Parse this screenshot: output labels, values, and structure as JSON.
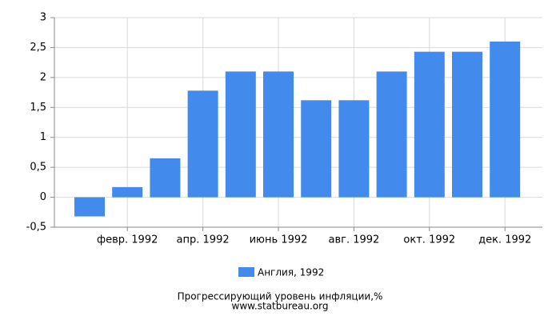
{
  "chart_data": {
    "type": "bar",
    "title": "Прогрессирующий уровень инфляции,%",
    "source": "www.statbureau.org",
    "categories": [
      null,
      "февр. 1992",
      null,
      "апр. 1992",
      null,
      "июнь 1992",
      null,
      "авг. 1992",
      null,
      "окт. 1992",
      null,
      "дек. 1992"
    ],
    "series": [
      {
        "name": "Англия, 1992",
        "color": "#428bed",
        "values": [
          -0.32,
          0.17,
          0.65,
          1.78,
          2.1,
          2.1,
          1.62,
          1.62,
          2.1,
          2.43,
          2.43,
          2.6
        ]
      }
    ],
    "ylim": [
      -0.5,
      3
    ],
    "yticks": [
      {
        "value": -0.5,
        "label": "-0,5"
      },
      0,
      {
        "value": 0.5,
        "label": "0,5"
      },
      1,
      {
        "value": 1.5,
        "label": "1,5"
      },
      2,
      {
        "value": 2.5,
        "label": "2,5"
      },
      3
    ],
    "grid": true
  }
}
